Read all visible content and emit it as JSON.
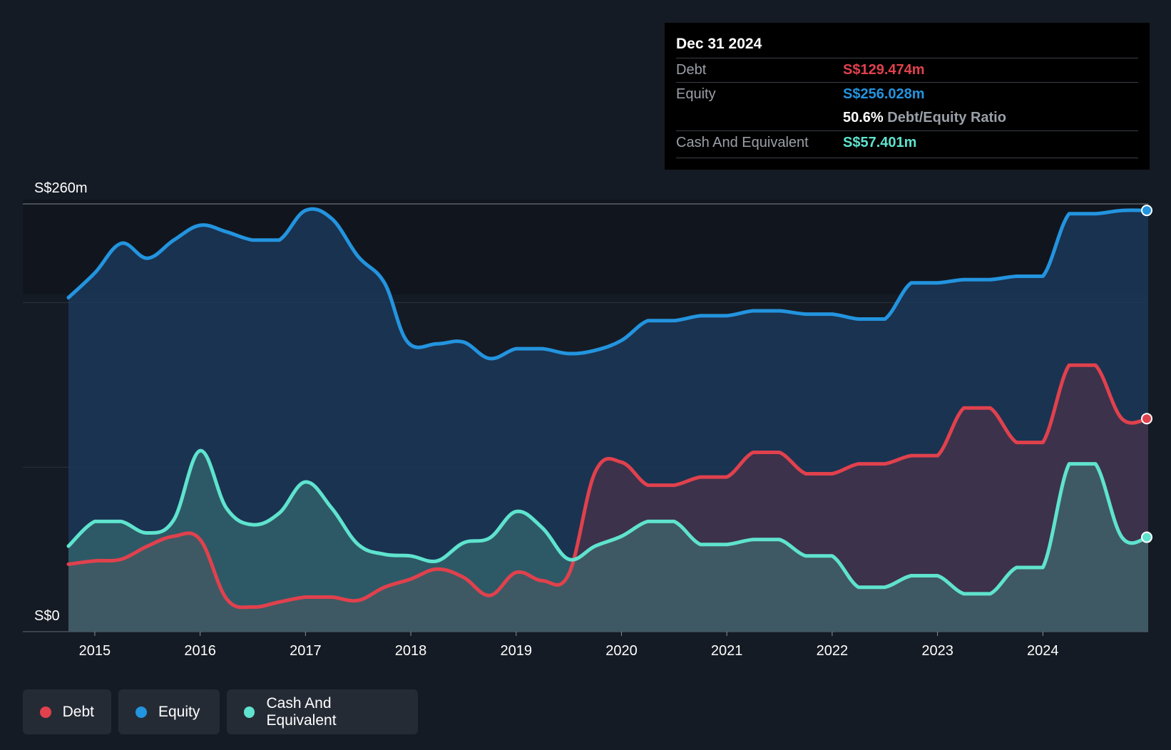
{
  "chart_data": {
    "type": "area",
    "y_axis": {
      "min": 0,
      "max": 260,
      "top_label": "S$260m",
      "bottom_label": "S$0",
      "unit": "S$m",
      "gridlines": [
        0,
        100,
        200,
        260
      ]
    },
    "x_ticks": [
      "2015",
      "2016",
      "2017",
      "2018",
      "2019",
      "2020",
      "2021",
      "2022",
      "2023",
      "2024"
    ],
    "x_range": [
      2014.75,
      2025.0
    ],
    "colors": {
      "debt": "#e0414d",
      "equity": "#2394df",
      "cash": "#5fe3ce"
    },
    "series": [
      {
        "name": "Equity",
        "color": "#2394df",
        "points": [
          [
            2014.75,
            203
          ],
          [
            2015.0,
            218
          ],
          [
            2015.25,
            236
          ],
          [
            2015.5,
            227
          ],
          [
            2015.75,
            238
          ],
          [
            2016.0,
            247
          ],
          [
            2016.25,
            243
          ],
          [
            2016.5,
            238
          ],
          [
            2016.75,
            238
          ],
          [
            2017.0,
            256
          ],
          [
            2017.25,
            251
          ],
          [
            2017.5,
            228
          ],
          [
            2017.75,
            212
          ],
          [
            2017.97,
            176
          ],
          [
            2018.25,
            175
          ],
          [
            2018.5,
            176
          ],
          [
            2018.75,
            166
          ],
          [
            2019.0,
            172
          ],
          [
            2019.25,
            172
          ],
          [
            2019.5,
            169
          ],
          [
            2019.75,
            171
          ],
          [
            2020.0,
            177
          ],
          [
            2020.25,
            189
          ],
          [
            2020.5,
            189
          ],
          [
            2020.75,
            192
          ],
          [
            2021.0,
            192
          ],
          [
            2021.25,
            195
          ],
          [
            2021.5,
            195
          ],
          [
            2021.75,
            193
          ],
          [
            2022.0,
            193
          ],
          [
            2022.25,
            190
          ],
          [
            2022.5,
            190
          ],
          [
            2022.75,
            212
          ],
          [
            2023.0,
            212
          ],
          [
            2023.25,
            214
          ],
          [
            2023.5,
            214
          ],
          [
            2023.75,
            216
          ],
          [
            2024.0,
            216
          ],
          [
            2024.25,
            254
          ],
          [
            2024.5,
            254
          ],
          [
            2024.75,
            256
          ],
          [
            2025.0,
            256.028
          ]
        ]
      },
      {
        "name": "Debt",
        "color": "#e0414d",
        "points": [
          [
            2014.75,
            41
          ],
          [
            2015.0,
            43
          ],
          [
            2015.25,
            44
          ],
          [
            2015.5,
            52
          ],
          [
            2015.75,
            58
          ],
          [
            2016.0,
            56
          ],
          [
            2016.25,
            20
          ],
          [
            2016.5,
            15
          ],
          [
            2016.75,
            18
          ],
          [
            2017.0,
            21
          ],
          [
            2017.25,
            21
          ],
          [
            2017.5,
            19
          ],
          [
            2017.75,
            27
          ],
          [
            2018.0,
            32
          ],
          [
            2018.25,
            38
          ],
          [
            2018.5,
            33
          ],
          [
            2018.75,
            22
          ],
          [
            2019.0,
            36
          ],
          [
            2019.25,
            31
          ],
          [
            2019.5,
            35
          ],
          [
            2019.75,
            97
          ],
          [
            2020.0,
            103
          ],
          [
            2020.25,
            89
          ],
          [
            2020.5,
            89
          ],
          [
            2020.75,
            94
          ],
          [
            2021.0,
            94
          ],
          [
            2021.25,
            109
          ],
          [
            2021.5,
            109
          ],
          [
            2021.75,
            96
          ],
          [
            2022.0,
            96
          ],
          [
            2022.25,
            102
          ],
          [
            2022.5,
            102
          ],
          [
            2022.75,
            107
          ],
          [
            2023.0,
            107
          ],
          [
            2023.25,
            136
          ],
          [
            2023.5,
            136
          ],
          [
            2023.75,
            115
          ],
          [
            2024.0,
            115
          ],
          [
            2024.25,
            162
          ],
          [
            2024.5,
            162
          ],
          [
            2024.75,
            129.5
          ],
          [
            2025.0,
            129.474
          ]
        ]
      },
      {
        "name": "Cash And Equivalent",
        "color": "#5fe3ce",
        "points": [
          [
            2014.75,
            52
          ],
          [
            2015.0,
            67
          ],
          [
            2015.25,
            67
          ],
          [
            2015.5,
            60
          ],
          [
            2015.75,
            68
          ],
          [
            2016.0,
            110
          ],
          [
            2016.25,
            75
          ],
          [
            2016.5,
            65
          ],
          [
            2016.75,
            72
          ],
          [
            2017.0,
            91
          ],
          [
            2017.25,
            75
          ],
          [
            2017.5,
            53
          ],
          [
            2017.75,
            47
          ],
          [
            2018.0,
            46
          ],
          [
            2018.25,
            43
          ],
          [
            2018.5,
            54
          ],
          [
            2018.75,
            57
          ],
          [
            2019.0,
            73
          ],
          [
            2019.25,
            63
          ],
          [
            2019.5,
            44
          ],
          [
            2019.75,
            52
          ],
          [
            2020.0,
            58
          ],
          [
            2020.25,
            67
          ],
          [
            2020.5,
            67
          ],
          [
            2020.75,
            53
          ],
          [
            2021.0,
            53
          ],
          [
            2021.25,
            56
          ],
          [
            2021.5,
            56
          ],
          [
            2021.75,
            46
          ],
          [
            2022.0,
            46
          ],
          [
            2022.25,
            27
          ],
          [
            2022.5,
            27
          ],
          [
            2022.75,
            34
          ],
          [
            2023.0,
            34
          ],
          [
            2023.25,
            23
          ],
          [
            2023.5,
            23
          ],
          [
            2023.75,
            39
          ],
          [
            2024.0,
            39
          ],
          [
            2024.25,
            102
          ],
          [
            2024.5,
            102
          ],
          [
            2024.75,
            57.4
          ],
          [
            2025.0,
            57.401
          ]
        ]
      }
    ]
  },
  "tooltip": {
    "date": "Dec 31 2024",
    "debt_label": "Debt",
    "debt_value": "S$129.474m",
    "equity_label": "Equity",
    "equity_value": "S$256.028m",
    "ratio_value": "50.6%",
    "ratio_label": "Debt/Equity Ratio",
    "cash_label": "Cash And Equivalent",
    "cash_value": "S$57.401m"
  },
  "legend": {
    "items": [
      {
        "label": "Debt",
        "color": "#e0414d"
      },
      {
        "label": "Equity",
        "color": "#2394df"
      },
      {
        "label": "Cash And Equivalent",
        "color": "#5fe3ce"
      }
    ]
  }
}
